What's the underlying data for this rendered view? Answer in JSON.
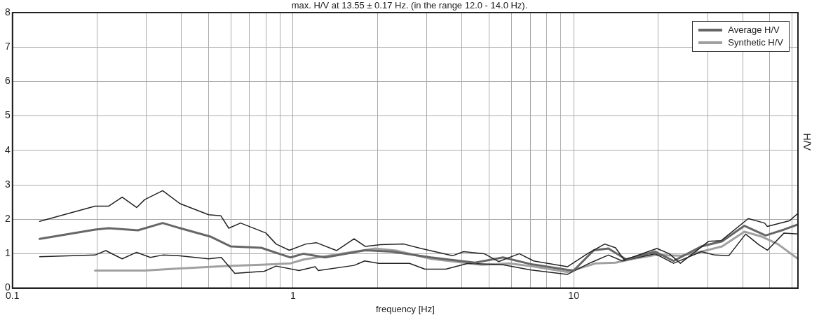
{
  "chart_data": {
    "type": "line",
    "title": "max. H/V at 13.55 ± 0.17 Hz. (in the range 12.0 - 14.0 Hz).",
    "xlabel": "frequency [Hz]",
    "ylabel": "H/V",
    "log": "x",
    "xlim": [
      0.1,
      63
    ],
    "ylim": [
      0,
      8
    ],
    "xticks": [
      0.1,
      {
        "value": 0.2,
        "label": null
      },
      {
        "value": 0.3,
        "label": null
      },
      {
        "value": 0.4,
        "label": null
      },
      {
        "value": 0.5,
        "label": null
      },
      {
        "value": 0.6,
        "label": null
      },
      {
        "value": 0.7,
        "label": null
      },
      {
        "value": 0.8,
        "label": null
      },
      {
        "value": 0.9,
        "label": null
      },
      1,
      {
        "value": 2,
        "label": null
      },
      {
        "value": 3,
        "label": null
      },
      {
        "value": 4,
        "label": null
      },
      {
        "value": 5,
        "label": null
      },
      {
        "value": 6,
        "label": null
      },
      {
        "value": 7,
        "label": null
      },
      {
        "value": 8,
        "label": null
      },
      {
        "value": 9,
        "label": null
      },
      10,
      {
        "value": 20,
        "label": null
      },
      {
        "value": 30,
        "label": null
      },
      {
        "value": 40,
        "label": null
      },
      {
        "value": 50,
        "label": null
      },
      {
        "value": 60,
        "label": null
      }
    ],
    "yticks": [
      0,
      1,
      2,
      3,
      4,
      5,
      6,
      7,
      8
    ],
    "grid": true,
    "legend": "top right",
    "marker": "none",
    "line_style": "solid",
    "series": [
      {
        "color": "#222222",
        "x": [
          0.125,
          0.197,
          0.22,
          0.246,
          0.277,
          0.296,
          0.343,
          0.396,
          0.5,
          0.553,
          0.59,
          0.65,
          0.8,
          0.87,
          0.97,
          1.11,
          1.21,
          1.43,
          1.65,
          1.81,
          2.05,
          2.48,
          2.86,
          3.7,
          4.05,
          4.8,
          5.4,
          6.4,
          7.2,
          9.5,
          11.2,
          12.9,
          14.1,
          15.1,
          16.1,
          19.8,
          21.9,
          24,
          30.3,
          33.6,
          41.9,
          47.9,
          49,
          58.9,
          63
        ],
        "values": [
          1.94,
          2.38,
          2.38,
          2.64,
          2.34,
          2.57,
          2.83,
          2.45,
          2.13,
          2.1,
          1.74,
          1.89,
          1.6,
          1.28,
          1.1,
          1.28,
          1.32,
          1.09,
          1.43,
          1.21,
          1.26,
          1.28,
          1.15,
          0.94,
          1.06,
          1.0,
          0.77,
          1.0,
          0.79,
          0.62,
          1.0,
          1.28,
          1.17,
          0.83,
          0.89,
          1.15,
          1.0,
          0.72,
          1.36,
          1.38,
          2.02,
          1.89,
          1.79,
          1.96,
          2.17
        ]
      },
      {
        "name": "Average H/V",
        "color": "#666666",
        "x": [
          0.125,
          0.197,
          0.22,
          0.28,
          0.343,
          0.396,
          0.51,
          0.6,
          0.77,
          0.98,
          1.09,
          1.3,
          1.81,
          2.25,
          3.1,
          4.45,
          5.6,
          7.0,
          9.5,
          10,
          11.8,
          13.3,
          15.4,
          19.5,
          22.7,
          28.5,
          33.8,
          40.6,
          48.3,
          56.2,
          63
        ],
        "values": [
          1.43,
          1.7,
          1.74,
          1.68,
          1.89,
          1.74,
          1.49,
          1.21,
          1.17,
          0.89,
          1.0,
          0.89,
          1.1,
          1.06,
          0.89,
          0.74,
          0.89,
          0.7,
          0.53,
          0.51,
          1.1,
          1.15,
          0.83,
          1.06,
          0.79,
          1.21,
          1.36,
          1.81,
          1.53,
          1.7,
          1.85
        ]
      },
      {
        "color": "#222222",
        "x": [
          0.125,
          0.197,
          0.215,
          0.246,
          0.277,
          0.31,
          0.343,
          0.39,
          0.5,
          0.555,
          0.62,
          0.79,
          0.87,
          1.05,
          1.2,
          1.23,
          1.65,
          1.8,
          2.02,
          2.6,
          2.95,
          3.5,
          4.2,
          5.6,
          7.0,
          9.5,
          11.5,
          13.3,
          14.9,
          19.5,
          22.7,
          28.5,
          31.9,
          35.7,
          41,
          45.7,
          49,
          56.2,
          63
        ],
        "values": [
          0.91,
          0.96,
          1.09,
          0.85,
          1.04,
          0.89,
          0.96,
          0.94,
          0.85,
          0.89,
          0.43,
          0.49,
          0.64,
          0.51,
          0.62,
          0.51,
          0.66,
          0.79,
          0.72,
          0.72,
          0.55,
          0.55,
          0.72,
          0.68,
          0.53,
          0.4,
          0.74,
          0.96,
          0.79,
          1.0,
          0.72,
          1.06,
          0.96,
          0.94,
          1.57,
          1.26,
          1.1,
          1.6,
          1.57
        ]
      },
      {
        "name": "Synthetic H/V",
        "color": "#a0a0a0",
        "x": [
          0.197,
          0.296,
          0.396,
          0.58,
          0.77,
          0.98,
          1.09,
          1.38,
          1.96,
          2.33,
          3.1,
          4.7,
          5.9,
          7.0,
          9.5,
          12,
          14.1,
          16.3,
          19.5,
          24,
          28.5,
          33.8,
          40.6,
          47,
          53.4,
          63
        ],
        "values": [
          0.51,
          0.51,
          0.57,
          0.64,
          0.68,
          0.72,
          0.83,
          0.96,
          1.15,
          1.09,
          0.85,
          0.68,
          0.72,
          0.64,
          0.47,
          0.72,
          0.74,
          0.85,
          0.96,
          0.94,
          1.06,
          1.21,
          1.64,
          1.49,
          1.28,
          0.85
        ]
      }
    ]
  }
}
